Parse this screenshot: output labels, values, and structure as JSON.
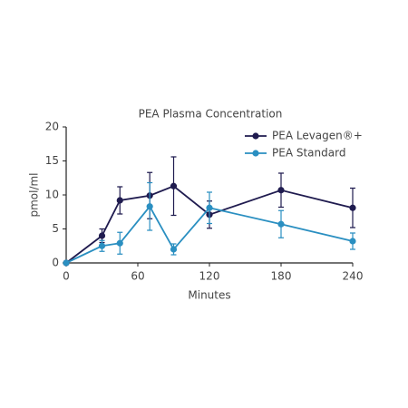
{
  "chart_data": {
    "type": "line",
    "title": "PEA Plasma Concentration",
    "xlabel": "Minutes",
    "ylabel": "pmol/ml",
    "x": [
      0,
      30,
      45,
      70,
      90,
      120,
      180,
      240
    ],
    "series": [
      {
        "name": "PEA Levagen®+",
        "color": "#1f1b4f",
        "values": [
          0,
          4,
          9.2,
          9.9,
          11.3,
          7.1,
          10.7,
          8.1
        ],
        "errors": [
          0,
          1,
          2,
          3.4,
          4.3,
          2,
          2.5,
          2.9
        ]
      },
      {
        "name": "PEA Standard",
        "color": "#2a8fc1",
        "values": [
          0,
          2.5,
          2.9,
          8.3,
          2,
          8.1,
          5.7,
          3.2
        ],
        "errors": [
          0,
          0.8,
          1.6,
          3.5,
          0.8,
          2.3,
          2,
          1.2
        ]
      }
    ],
    "xlim": [
      0,
      240
    ],
    "xticks": [
      0,
      60,
      120,
      180,
      240
    ],
    "ylim": [
      0,
      20
    ],
    "yticks": [
      0,
      5,
      10,
      15,
      20
    ],
    "grid": false,
    "legend": "upper right"
  }
}
